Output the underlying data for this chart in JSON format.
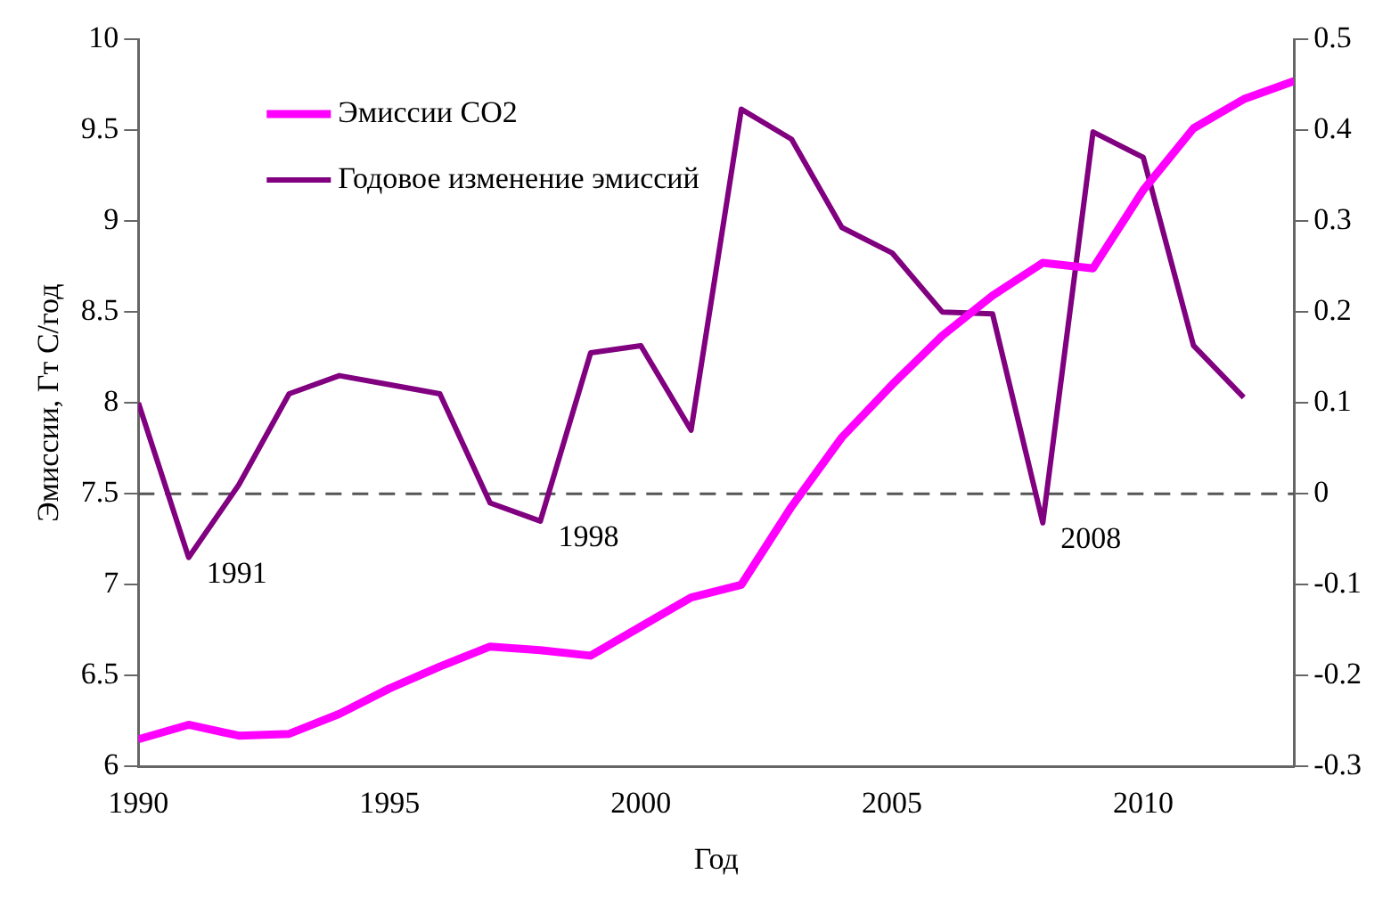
{
  "chart_data": {
    "type": "line",
    "xlabel": "Год",
    "ylabel": "Эмиссии, Гт С/год",
    "x": [
      1990,
      1991,
      1992,
      1993,
      1994,
      1995,
      1996,
      1997,
      1998,
      1999,
      2000,
      2001,
      2002,
      2003,
      2004,
      2005,
      2006,
      2007,
      2008,
      2009,
      2010,
      2011,
      2012,
      2013
    ],
    "series": [
      {
        "name": "Эмиссии CO2",
        "color": "#ff00ff",
        "values": [
          6.15,
          6.23,
          6.17,
          6.18,
          6.29,
          6.43,
          6.55,
          6.66,
          6.64,
          6.61,
          6.77,
          6.93,
          7.0,
          7.43,
          7.81,
          8.1,
          8.37,
          8.59,
          8.77,
          8.74,
          9.17,
          9.51,
          9.67,
          9.77
        ]
      },
      {
        "name": "Годовое изменение эмиссий",
        "color": "#800080",
        "axis": "y2",
        "values": [
          0.1,
          -0.07,
          0.01,
          0.11,
          0.13,
          0.12,
          0.11,
          -0.01,
          -0.03,
          0.155,
          0.163,
          0.07,
          0.423,
          0.39,
          0.293,
          0.265,
          0.2,
          0.198,
          -0.032,
          0.398,
          0.37,
          0.163,
          0.106,
          null
        ]
      }
    ],
    "xlim": [
      1990,
      2013
    ],
    "xticks": [
      1990,
      1995,
      2000,
      2005,
      2010
    ],
    "ylim": [
      6,
      10
    ],
    "yticks": [
      6,
      6.5,
      7,
      7.5,
      8,
      8.5,
      9,
      9.5,
      10
    ],
    "y2lim": [
      -0.3,
      0.5
    ],
    "y2ticks": [
      -0.3,
      -0.2,
      -0.1,
      0,
      0.1,
      0.2,
      0.3,
      0.4,
      0.5
    ],
    "ref_lines": [
      {
        "axis": "y2",
        "value": 0,
        "color": "#555555",
        "line_style": "dashed"
      }
    ],
    "annotations": [
      {
        "text": "1991",
        "x": 1991,
        "y": 7.15
      },
      {
        "text": "1998",
        "x": 1998,
        "y": 7.35
      },
      {
        "text": "2008",
        "x": 2008,
        "y": 7.34
      }
    ],
    "legend": "top left",
    "grid": false,
    "marker": "none",
    "line_style": "solid"
  }
}
